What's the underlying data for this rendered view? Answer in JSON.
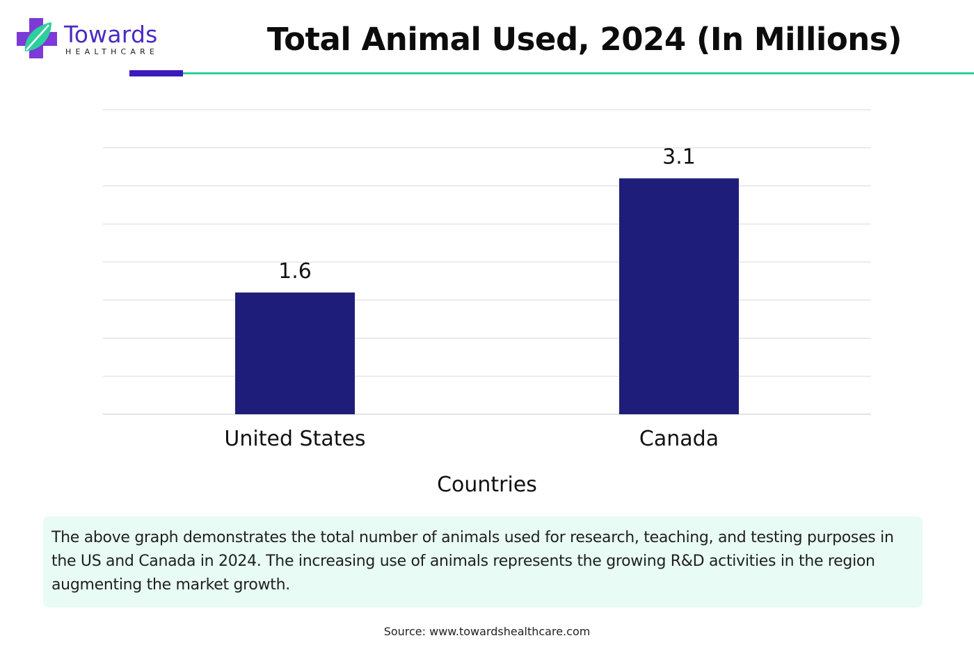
{
  "brand": {
    "name": "Towards",
    "tagline": "HEALTHCARE",
    "logo_icon": "cross-leaf-icon",
    "colors": {
      "purple": "#4a2bc2",
      "teal": "#2ecf9e"
    }
  },
  "chart_data": {
    "type": "bar",
    "title": "Total Animal Used, 2024 (In Millions)",
    "categories": [
      "United States",
      "Canada"
    ],
    "values": [
      1.6,
      3.1
    ],
    "data_labels": [
      "1.6",
      "3.1"
    ],
    "xlabel": "Countries",
    "ylabel": "",
    "ylim": [
      0,
      4
    ],
    "grid": true,
    "bar_color": "#1e1e7a"
  },
  "note": "The above graph demonstrates the total number of animals used for research, teaching, and testing purposes in the US and Canada in 2024. The increasing use of animals represents the growing R&D activities in the region augmenting the market growth.",
  "source": "Source: www.towardshealthcare.com"
}
